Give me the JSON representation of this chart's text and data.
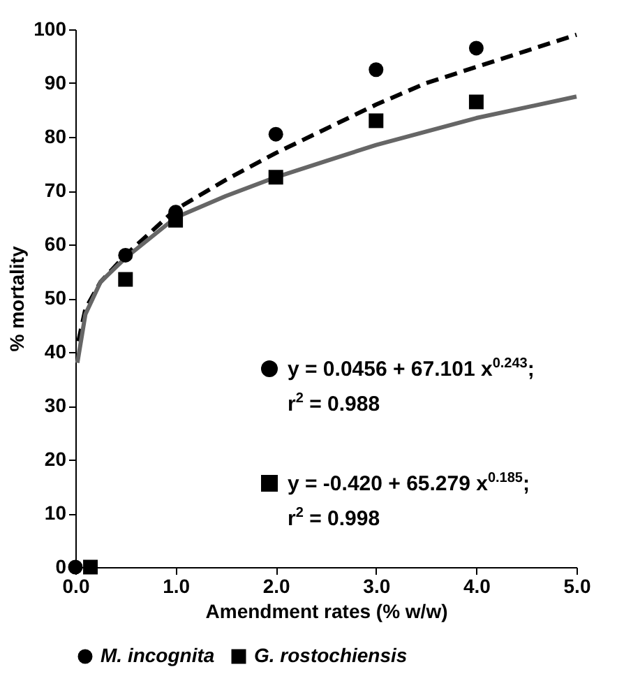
{
  "chart_data": {
    "type": "scatter",
    "xlabel": "Amendment rates (% w/w)",
    "ylabel": "% mortality",
    "xlim": [
      0,
      5
    ],
    "ylim": [
      0,
      100
    ],
    "xticks": [
      {
        "value": 0,
        "label": "0.0"
      },
      {
        "value": 1,
        "label": "1.0"
      },
      {
        "value": 2,
        "label": "2.0"
      },
      {
        "value": 3,
        "label": "3.0"
      },
      {
        "value": 4,
        "label": "4.0"
      },
      {
        "value": 5,
        "label": "5.0"
      }
    ],
    "yticks": [
      0,
      10,
      20,
      30,
      40,
      50,
      60,
      70,
      80,
      90,
      100
    ],
    "grid": false,
    "legend": "bottom",
    "series": [
      {
        "name": "M. incognita",
        "marker": "circle",
        "color": "#000000",
        "x": [
          0,
          0.5,
          1,
          2,
          3,
          4
        ],
        "values": [
          0,
          58,
          66,
          80.5,
          92.5,
          96.5
        ]
      },
      {
        "name": "G. rostochiensis",
        "marker": "square",
        "color": "#000000",
        "x": [
          0.15,
          0.5,
          1,
          2,
          3,
          4
        ],
        "values": [
          0,
          53.5,
          64.5,
          72.5,
          83,
          86.5
        ]
      },
      {
        "line_style": "dashed",
        "type": "line",
        "color": "#000000",
        "x": [
          0.03,
          0.1,
          0.25,
          0.5,
          1,
          1.5,
          2,
          2.5,
          3,
          3.5,
          4,
          4.5,
          5
        ],
        "values": [
          42,
          48,
          53,
          58,
          66.5,
          72,
          77,
          81.5,
          86,
          90,
          93,
          96,
          99
        ]
      },
      {
        "type": "line",
        "line_style": "solid",
        "color": "#666666",
        "x": [
          0.02,
          0.1,
          0.25,
          0.5,
          1,
          1.5,
          2,
          2.5,
          3,
          3.5,
          4,
          4.5,
          5
        ],
        "values": [
          38,
          47,
          53,
          57.5,
          65,
          69,
          72.5,
          75.5,
          78.5,
          81,
          83.5,
          85.5,
          87.5
        ]
      }
    ],
    "annotations": [
      "y = 0.0456 + 67.101 x$^{0.243}$;",
      "r$^{2}$ = 0.988",
      "y = -0.420 + 65.279 x$^{0.185}$;",
      "r$^{2}$ = 0.998"
    ]
  }
}
